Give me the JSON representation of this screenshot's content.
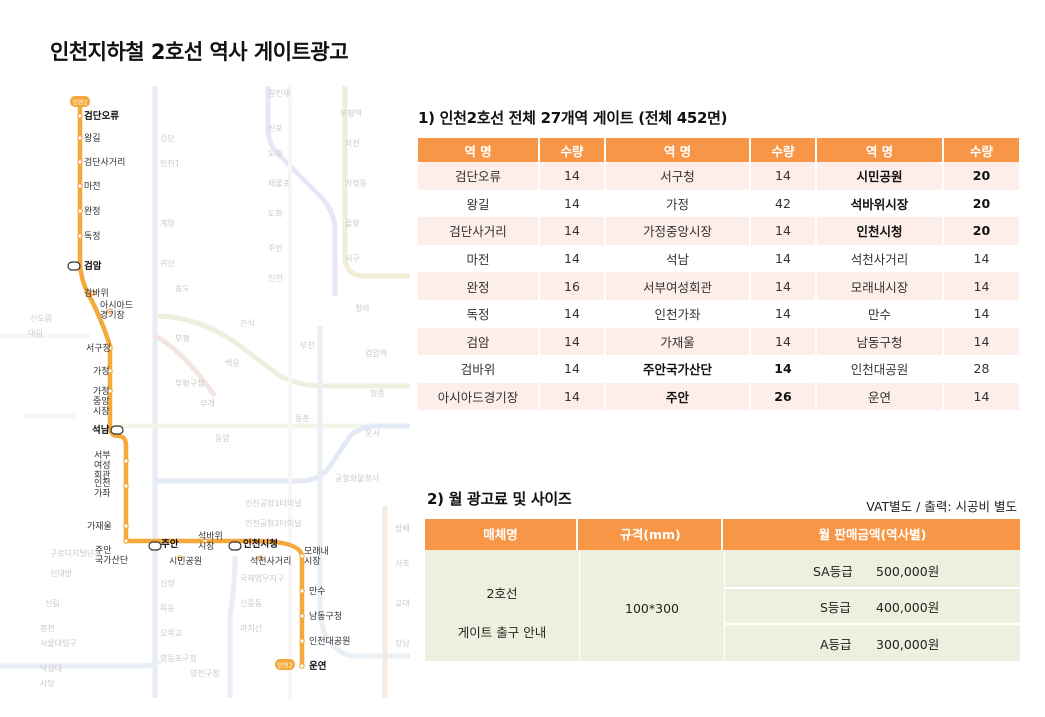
{
  "page": {
    "title": "인천지하철 2호선 역사 게이트광고"
  },
  "map": {
    "line2_stations": [
      "검단오류",
      "왕길",
      "검단사거리",
      "마전",
      "완정",
      "독정",
      "검암",
      "검바위",
      "아시아드\n경기장",
      "서구청",
      "가정",
      "가정\n중앙\n시장",
      "석남",
      "서부\n여성\n회관",
      "인천\n가좌",
      "가재울",
      "주안\n국가산단",
      "주안",
      "시민공원",
      "석바위\n시장",
      "인천시청",
      "석천사거리",
      "모래내\n시장",
      "만수",
      "남동구청",
      "인천대공원",
      "운연"
    ],
    "terminal_badge": "인천2",
    "ghost_labels": [
      "검단",
      "인천1",
      "계양",
      "귀산",
      "송도",
      "부평",
      "부평구청",
      "부개",
      "백운",
      "동암",
      "간석",
      "원인재",
      "신포",
      "도원",
      "제물포",
      "도화",
      "주안",
      "인천",
      "동춘",
      "부천",
      "부평역",
      "작전",
      "가정동",
      "을왕",
      "서구",
      "청라",
      "검암역",
      "영종",
      "운서",
      "공항화물청사",
      "인천공항1터미널",
      "인천공항2터미널",
      "국제업무지구",
      "신중동",
      "까치산",
      "신정",
      "목동",
      "오목교",
      "영등포구청",
      "양천구청",
      "신도림",
      "대림",
      "구로디지털단지",
      "신대방",
      "신림",
      "봉천",
      "서울대입구",
      "낙성대",
      "사당",
      "방배",
      "서초",
      "교대",
      "강남"
    ]
  },
  "section1": {
    "title": "1) 인천2호선 전체 27개역 게이트 (전체 452면)",
    "headers": [
      "역 명",
      "수량",
      "역 명",
      "수량",
      "역 명",
      "수량"
    ],
    "rows": [
      [
        "검단오류",
        "14",
        "서구청",
        "14",
        "시민공원",
        "20"
      ],
      [
        "왕길",
        "14",
        "가정",
        "42",
        "석바위시장",
        "20"
      ],
      [
        "검단사거리",
        "14",
        "가정중앙시장",
        "14",
        "인천시청",
        "20"
      ],
      [
        "마전",
        "14",
        "석남",
        "14",
        "석천사거리",
        "14"
      ],
      [
        "완정",
        "16",
        "서부여성회관",
        "14",
        "모래내시장",
        "14"
      ],
      [
        "독정",
        "14",
        "인천가좌",
        "14",
        "만수",
        "14"
      ],
      [
        "검암",
        "14",
        "가재울",
        "14",
        "남동구청",
        "14"
      ],
      [
        "검바위",
        "14",
        "주안국가산단",
        "14",
        "인천대공원",
        "28"
      ],
      [
        "아시아드경기장",
        "14",
        "주안",
        "26",
        "운연",
        "14"
      ]
    ]
  },
  "section2": {
    "title": "2) 월 광고료 및 사이즈",
    "vat_note": "VAT별도 / 출력: 시공비 별도",
    "headers": [
      "매체명",
      "규격(mm)",
      "월 판매금액(역사별)"
    ],
    "media_line1": "2호선",
    "media_line2": "게이트 출구 안내",
    "size": "100*300",
    "grades": [
      {
        "grade": "SA등급",
        "price": "500,000원"
      },
      {
        "grade": "S등급",
        "price": "400,000원"
      },
      {
        "grade": "A등급",
        "price": "300,000원"
      }
    ]
  },
  "colors": {
    "accent_orange": "#f79646",
    "row_pink": "#fdeee9",
    "price_bg": "#ebf1de",
    "line2": "#f5a83c"
  }
}
